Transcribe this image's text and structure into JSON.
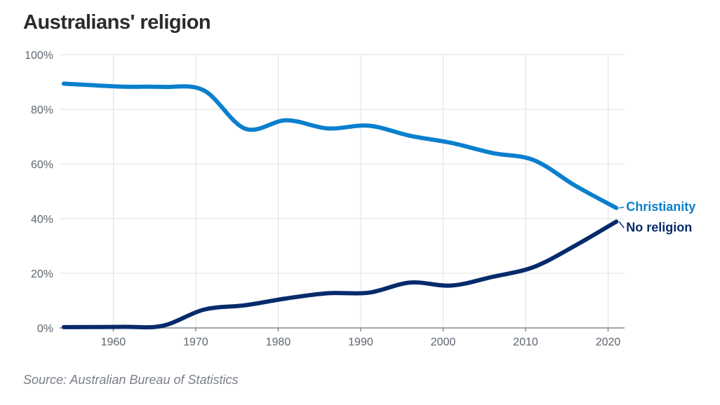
{
  "chart_data": {
    "type": "line",
    "title": "Australians' religion",
    "source": "Source: Australian Bureau of Statistics",
    "xlabel": "",
    "ylabel": "",
    "xlim": [
      1953.5,
      2022
    ],
    "ylim": [
      0,
      100
    ],
    "x_ticks": [
      1960,
      1970,
      1980,
      1990,
      2000,
      2010,
      2020
    ],
    "y_ticks": [
      0,
      20,
      40,
      60,
      80,
      100
    ],
    "y_tick_format": "%",
    "grid": true,
    "legend": "direct labels at line ends (right)",
    "series": [
      {
        "name": "Christianity",
        "color": "#0a7fcd",
        "x": [
          1954,
          1961,
          1966,
          1971,
          1976,
          1981,
          1986,
          1991,
          1996,
          2001,
          2006,
          2011,
          2016,
          2021
        ],
        "values": [
          89.4,
          88.3,
          88.2,
          86.9,
          72.9,
          76.0,
          73.0,
          74.0,
          70.3,
          67.7,
          64.0,
          61.4,
          52.1,
          43.9
        ]
      },
      {
        "name": "No religion",
        "color": "#062b6b",
        "x": [
          1954,
          1961,
          1966,
          1971,
          1976,
          1981,
          1986,
          1991,
          1996,
          2001,
          2006,
          2011,
          2016,
          2021
        ],
        "values": [
          0.3,
          0.4,
          0.8,
          6.7,
          8.3,
          10.8,
          12.7,
          12.9,
          16.6,
          15.5,
          18.7,
          22.3,
          30.1,
          38.9
        ]
      }
    ]
  }
}
